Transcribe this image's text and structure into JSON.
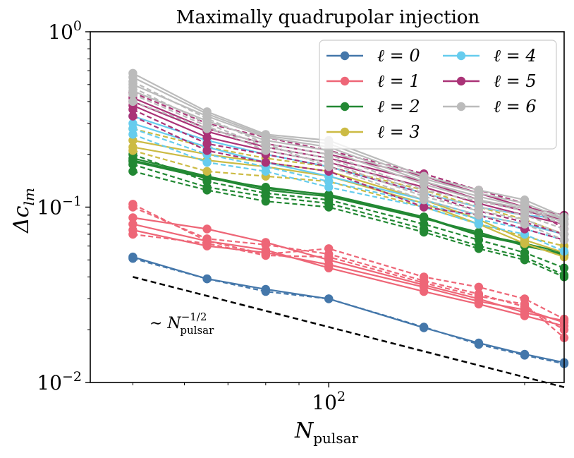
{
  "chart_data": {
    "type": "line",
    "title": "Maximally quadrupolar injection",
    "xlabel": "N",
    "xlabel_subscript": "pulsar",
    "ylabel": "Δc",
    "ylabel_subscript": "lm",
    "xscale": "log",
    "yscale": "log",
    "xlim": [
      43,
      230
    ],
    "ylim": [
      0.01,
      1.0
    ],
    "x_ticks": [
      {
        "value": 100,
        "base": "10",
        "exp": "2"
      }
    ],
    "y_ticks": [
      {
        "value": 0.01,
        "base": "10",
        "exp": "−2"
      },
      {
        "value": 0.1,
        "base": "10",
        "exp": "−1"
      },
      {
        "value": 1.0,
        "base": "10",
        "exp": "0"
      }
    ],
    "x": [
      50,
      65,
      80,
      100,
      140,
      170,
      200,
      230
    ],
    "legend": {
      "placement": "top-right",
      "columns": 2,
      "entries": [
        {
          "label": "ℓ = 0",
          "series": "l0"
        },
        {
          "label": "ℓ = 1",
          "series": "l1"
        },
        {
          "label": "ℓ = 2",
          "series": "l2"
        },
        {
          "label": "ℓ = 3",
          "series": "l3"
        },
        {
          "label": "ℓ = 4",
          "series": "l4"
        },
        {
          "label": "ℓ = 5",
          "series": "l5"
        },
        {
          "label": "ℓ = 6",
          "series": "l6"
        }
      ]
    },
    "series": [
      {
        "id": "l0",
        "name": "ℓ = 0",
        "color": "#4477aa",
        "lines": [
          {
            "dash": false,
            "values": [
              0.052,
              0.039,
              0.034,
              0.03,
              0.0205,
              0.0168,
              0.0145,
              0.013
            ]
          },
          {
            "dash": true,
            "values": [
              0.051,
              0.039,
              0.033,
              0.03,
              0.0207,
              0.0165,
              0.0143,
              0.0128
            ]
          }
        ]
      },
      {
        "id": "l1",
        "name": "ℓ = 1",
        "color": "#ee6677",
        "lines": [
          {
            "dash": false,
            "values": [
              0.087,
              0.075,
              0.063,
              0.05,
              0.036,
              0.03,
              0.025,
              0.0225
            ]
          },
          {
            "dash": false,
            "values": [
              0.08,
              0.064,
              0.057,
              0.045,
              0.033,
              0.028,
              0.024,
              0.021
            ]
          },
          {
            "dash": false,
            "values": [
              0.074,
              0.06,
              0.055,
              0.047,
              0.035,
              0.029,
              0.026,
              0.022
            ]
          },
          {
            "dash": true,
            "values": [
              0.104,
              0.064,
              0.054,
              0.058,
              0.04,
              0.035,
              0.03,
              0.023
            ]
          },
          {
            "dash": true,
            "values": [
              0.1,
              0.066,
              0.061,
              0.054,
              0.038,
              0.032,
              0.027,
              0.02
            ]
          },
          {
            "dash": true,
            "values": [
              0.07,
              0.062,
              0.053,
              0.052,
              0.037,
              0.031,
              0.028,
              0.018
            ]
          }
        ]
      },
      {
        "id": "l2",
        "name": "ℓ = 2",
        "color": "#228833",
        "lines": [
          {
            "dash": false,
            "values": [
              0.19,
              0.15,
              0.128,
              0.118,
              0.088,
              0.07,
              0.062,
              0.055
            ]
          },
          {
            "dash": false,
            "values": [
              0.185,
              0.148,
              0.125,
              0.115,
              0.086,
              0.072,
              0.06,
              0.054
            ]
          },
          {
            "dash": false,
            "values": [
              0.182,
              0.146,
              0.13,
              0.117,
              0.087,
              0.069,
              0.061,
              0.053
            ]
          },
          {
            "dash": true,
            "values": [
              0.175,
              0.13,
              0.115,
              0.105,
              0.075,
              0.06,
              0.052,
              0.041
            ]
          },
          {
            "dash": true,
            "values": [
              0.16,
              0.125,
              0.108,
              0.1,
              0.072,
              0.058,
              0.05,
              0.04
            ]
          },
          {
            "dash": true,
            "values": [
              0.2,
              0.14,
              0.12,
              0.11,
              0.08,
              0.065,
              0.055,
              0.045
            ]
          }
        ]
      },
      {
        "id": "l3",
        "name": "ℓ = 3",
        "color": "#ccbb44",
        "lines": [
          {
            "dash": false,
            "values": [
              0.24,
              0.2,
              0.18,
              0.16,
              0.11,
              0.085,
              0.065,
              0.055
            ]
          },
          {
            "dash": false,
            "values": [
              0.22,
              0.185,
              0.17,
              0.15,
              0.105,
              0.08,
              0.062,
              0.052
            ]
          },
          {
            "dash": true,
            "values": [
              0.28,
              0.22,
              0.19,
              0.17,
              0.125,
              0.1,
              0.085,
              0.07
            ]
          },
          {
            "dash": true,
            "values": [
              0.21,
              0.16,
              0.15,
              0.14,
              0.1,
              0.08,
              0.068,
              0.06
            ]
          }
        ]
      },
      {
        "id": "l4",
        "name": "ℓ = 4",
        "color": "#66ccee",
        "lines": [
          {
            "dash": false,
            "values": [
              0.33,
              0.24,
              0.2,
              0.17,
              0.12,
              0.1,
              0.09,
              0.086
            ]
          },
          {
            "dash": false,
            "values": [
              0.3,
              0.22,
              0.18,
              0.15,
              0.11,
              0.09,
              0.08,
              0.07
            ]
          },
          {
            "dash": true,
            "values": [
              0.26,
              0.18,
              0.16,
              0.13,
              0.1,
              0.08,
              0.07,
              0.056
            ]
          },
          {
            "dash": true,
            "values": [
              0.28,
              0.2,
              0.17,
              0.14,
              0.105,
              0.085,
              0.075,
              0.065
            ]
          }
        ]
      },
      {
        "id": "l5",
        "name": "ℓ = 5",
        "color": "#aa3377",
        "lines": [
          {
            "dash": false,
            "values": [
              0.42,
              0.28,
              0.23,
              0.2,
              0.15,
              0.12,
              0.1,
              0.09
            ]
          },
          {
            "dash": false,
            "values": [
              0.4,
              0.27,
              0.22,
              0.19,
              0.14,
              0.11,
              0.095,
              0.085
            ]
          },
          {
            "dash": false,
            "values": [
              0.38,
              0.25,
              0.21,
              0.18,
              0.13,
              0.105,
              0.09,
              0.08
            ]
          },
          {
            "dash": true,
            "values": [
              0.45,
              0.3,
              0.25,
              0.21,
              0.155,
              0.125,
              0.105,
              0.075
            ]
          },
          {
            "dash": true,
            "values": [
              0.36,
              0.23,
              0.2,
              0.17,
              0.12,
              0.095,
              0.082,
              0.07
            ]
          },
          {
            "dash": true,
            "values": [
              0.33,
              0.21,
              0.18,
              0.16,
              0.1,
              0.09,
              0.075,
              0.065
            ]
          }
        ]
      },
      {
        "id": "l6",
        "name": "ℓ = 6",
        "color": "#bbbbbb",
        "lines": [
          {
            "dash": false,
            "values": [
              0.58,
              0.35,
              0.26,
              0.24,
              0.15,
              0.125,
              0.11,
              0.088
            ]
          },
          {
            "dash": false,
            "values": [
              0.55,
              0.34,
              0.255,
              0.23,
              0.145,
              0.12,
              0.105,
              0.086
            ]
          },
          {
            "dash": false,
            "values": [
              0.5,
              0.33,
              0.25,
              0.22,
              0.14,
              0.115,
              0.1,
              0.085
            ]
          },
          {
            "dash": false,
            "values": [
              0.46,
              0.31,
              0.24,
              0.21,
              0.135,
              0.11,
              0.098,
              0.082
            ]
          },
          {
            "dash": true,
            "values": [
              0.52,
              0.32,
              0.23,
              0.2,
              0.125,
              0.108,
              0.095,
              0.08
            ]
          },
          {
            "dash": true,
            "values": [
              0.48,
              0.3,
              0.22,
              0.19,
              0.12,
              0.1,
              0.09,
              0.075
            ]
          },
          {
            "dash": true,
            "values": [
              0.44,
              0.29,
              0.21,
              0.18,
              0.115,
              0.095,
              0.085,
              0.07
            ]
          },
          {
            "dash": true,
            "values": [
              0.4,
              0.28,
              0.23,
              0.17,
              0.11,
              0.09,
              0.08,
              0.065
            ]
          }
        ]
      }
    ],
    "reference_line": {
      "label": "∼ N",
      "label_subscript": "pulsar",
      "label_superscript": "−1/2",
      "color": "#000000",
      "x": [
        50,
        230
      ],
      "values": [
        0.04,
        0.0094
      ]
    }
  }
}
